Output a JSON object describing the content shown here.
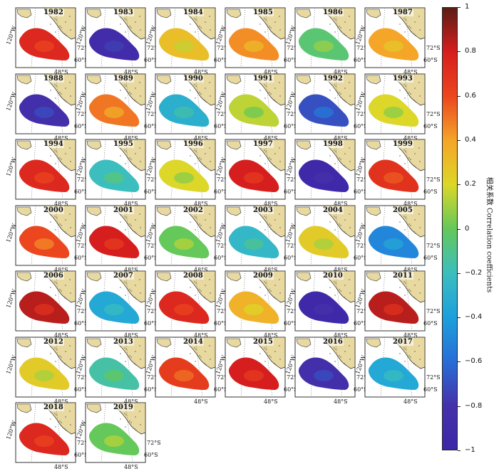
{
  "chart_data": {
    "type": "heatmap",
    "description_kind": "small-multiple correlation maps",
    "years": [
      "1982",
      "1983",
      "1984",
      "1985",
      "1986",
      "1987",
      "1988",
      "1989",
      "1990",
      "1991",
      "1992",
      "1993",
      "1994",
      "1995",
      "1996",
      "1997",
      "1998",
      "1999",
      "2000",
      "2001",
      "2002",
      "2003",
      "2004",
      "2005",
      "2006",
      "2007",
      "2008",
      "2009",
      "2010",
      "2011",
      "2012",
      "2013",
      "2014",
      "2015",
      "2016",
      "2017",
      "2018",
      "2019"
    ],
    "mean_correlation": [
      0.75,
      -0.9,
      0.3,
      0.45,
      -0.05,
      0.4,
      -0.85,
      0.5,
      -0.3,
      0.15,
      -0.7,
      0.2,
      0.75,
      -0.2,
      0.2,
      0.8,
      -0.95,
      0.7,
      0.6,
      0.8,
      0.0,
      -0.25,
      0.25,
      -0.5,
      0.85,
      -0.35,
      0.75,
      0.35,
      -0.95,
      0.85,
      0.25,
      -0.15,
      0.65,
      0.8,
      -0.85,
      -0.35,
      0.75,
      0.0
    ],
    "map_labels": {
      "lon": "120°W",
      "lat1": "72°S",
      "lat2": "60°S",
      "lat3": "48°S"
    },
    "colorbar": {
      "label": "相关系数 Correlation coefficients",
      "ticks": [
        "1",
        "0.8",
        "0.6",
        "0.4",
        "0.2",
        "0",
        "−0.2",
        "−0.4",
        "−0.6",
        "−0.8",
        "−1"
      ],
      "range": [
        -1,
        1
      ],
      "colormap": "parula-like"
    }
  }
}
